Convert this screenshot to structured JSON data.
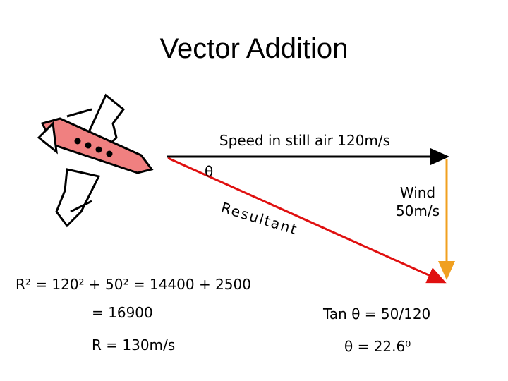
{
  "title": "Vector Addition",
  "labels": {
    "speed": "Speed in still air 120m/s",
    "theta": "θ",
    "resultant": "Resultant",
    "wind": [
      "Wind",
      "50m/s"
    ]
  },
  "equations": {
    "r_squared": "R² = 120² + 50² = 14400 + 2500",
    "r_squared_sum": "= 16900",
    "r": "R = 130m/s",
    "tan": "Tan θ = 50/120",
    "theta": "θ = 22.6⁰"
  }
}
